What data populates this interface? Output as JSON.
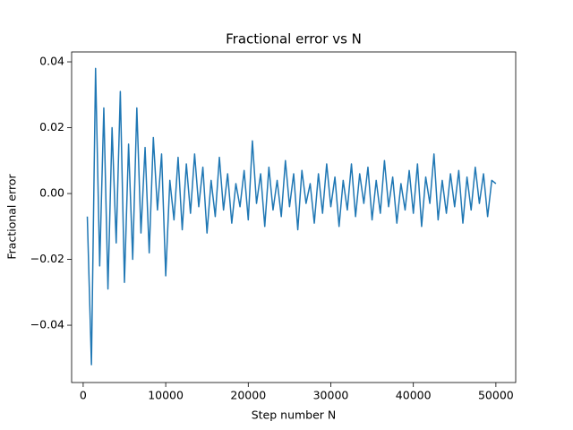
{
  "chart_data": {
    "type": "line",
    "title": "Fractional error vs N",
    "xlabel": "Step number N",
    "ylabel": "Fractional error",
    "x": [
      500,
      1000,
      1500,
      2000,
      2500,
      3000,
      3500,
      4000,
      4500,
      5000,
      5500,
      6000,
      6500,
      7000,
      7500,
      8000,
      8500,
      9000,
      9500,
      10000,
      10500,
      11000,
      11500,
      12000,
      12500,
      13000,
      13500,
      14000,
      14500,
      15000,
      15500,
      16000,
      16500,
      17000,
      17500,
      18000,
      18500,
      19000,
      19500,
      20000,
      20500,
      21000,
      21500,
      22000,
      22500,
      23000,
      23500,
      24000,
      24500,
      25000,
      25500,
      26000,
      26500,
      27000,
      27500,
      28000,
      28500,
      29000,
      29500,
      30000,
      30500,
      31000,
      31500,
      32000,
      32500,
      33000,
      33500,
      34000,
      34500,
      35000,
      35500,
      36000,
      36500,
      37000,
      37500,
      38000,
      38500,
      39000,
      39500,
      40000,
      40500,
      41000,
      41500,
      42000,
      42500,
      43000,
      43500,
      44000,
      44500,
      45000,
      45500,
      46000,
      46500,
      47000,
      47500,
      48000,
      48500,
      49000,
      49500,
      50000
    ],
    "series": [
      {
        "name": "Fractional error",
        "color": "#1f77b4",
        "values": [
          -0.007,
          -0.052,
          0.038,
          -0.022,
          0.026,
          -0.029,
          0.02,
          -0.015,
          0.031,
          -0.027,
          0.015,
          -0.02,
          0.026,
          -0.012,
          0.014,
          -0.018,
          0.017,
          -0.005,
          0.012,
          -0.025,
          0.004,
          -0.008,
          0.011,
          -0.011,
          0.009,
          -0.006,
          0.012,
          -0.004,
          0.008,
          -0.012,
          0.004,
          -0.007,
          0.011,
          -0.005,
          0.006,
          -0.009,
          0.003,
          -0.004,
          0.007,
          -0.008,
          0.016,
          -0.003,
          0.006,
          -0.01,
          0.008,
          -0.005,
          0.004,
          -0.007,
          0.01,
          -0.004,
          0.006,
          -0.011,
          0.007,
          -0.003,
          0.003,
          -0.009,
          0.006,
          -0.006,
          0.009,
          -0.004,
          0.005,
          -0.01,
          0.004,
          -0.005,
          0.009,
          -0.007,
          0.006,
          -0.003,
          0.008,
          -0.008,
          0.004,
          -0.006,
          0.01,
          -0.004,
          0.005,
          -0.009,
          0.003,
          -0.005,
          0.007,
          -0.006,
          0.009,
          -0.01,
          0.005,
          -0.003,
          0.012,
          -0.008,
          0.004,
          -0.006,
          0.006,
          -0.004,
          0.007,
          -0.009,
          0.005,
          -0.005,
          0.008,
          -0.003,
          0.006,
          -0.007,
          0.004,
          0.003
        ]
      }
    ],
    "xlim": [
      -1400,
      52400
    ],
    "xticks": [
      0,
      10000,
      20000,
      30000,
      40000,
      50000
    ],
    "ylim": [
      -0.0574,
      0.043
    ],
    "yticks": [
      {
        "value": -0.04,
        "label": "−0.04"
      },
      {
        "value": -0.02,
        "label": "−0.02"
      },
      {
        "value": 0,
        "label": "0.00"
      },
      0.02,
      0.04
    ],
    "grid": false
  }
}
